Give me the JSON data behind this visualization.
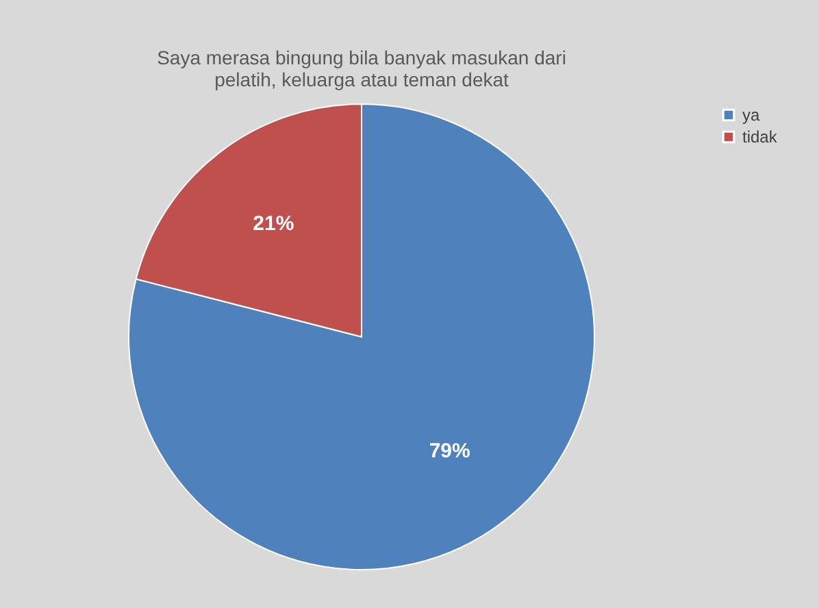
{
  "chart_data": {
    "type": "pie",
    "title": "Saya merasa bingung bila banyak masukan dari pelatih, keluarga atau teman dekat",
    "categories": [
      "ya",
      "tidak"
    ],
    "values": [
      79,
      21
    ],
    "colors": [
      "#4f81bd",
      "#c0504d"
    ],
    "value_labels": [
      "79%",
      "21%"
    ],
    "legend": "right"
  }
}
